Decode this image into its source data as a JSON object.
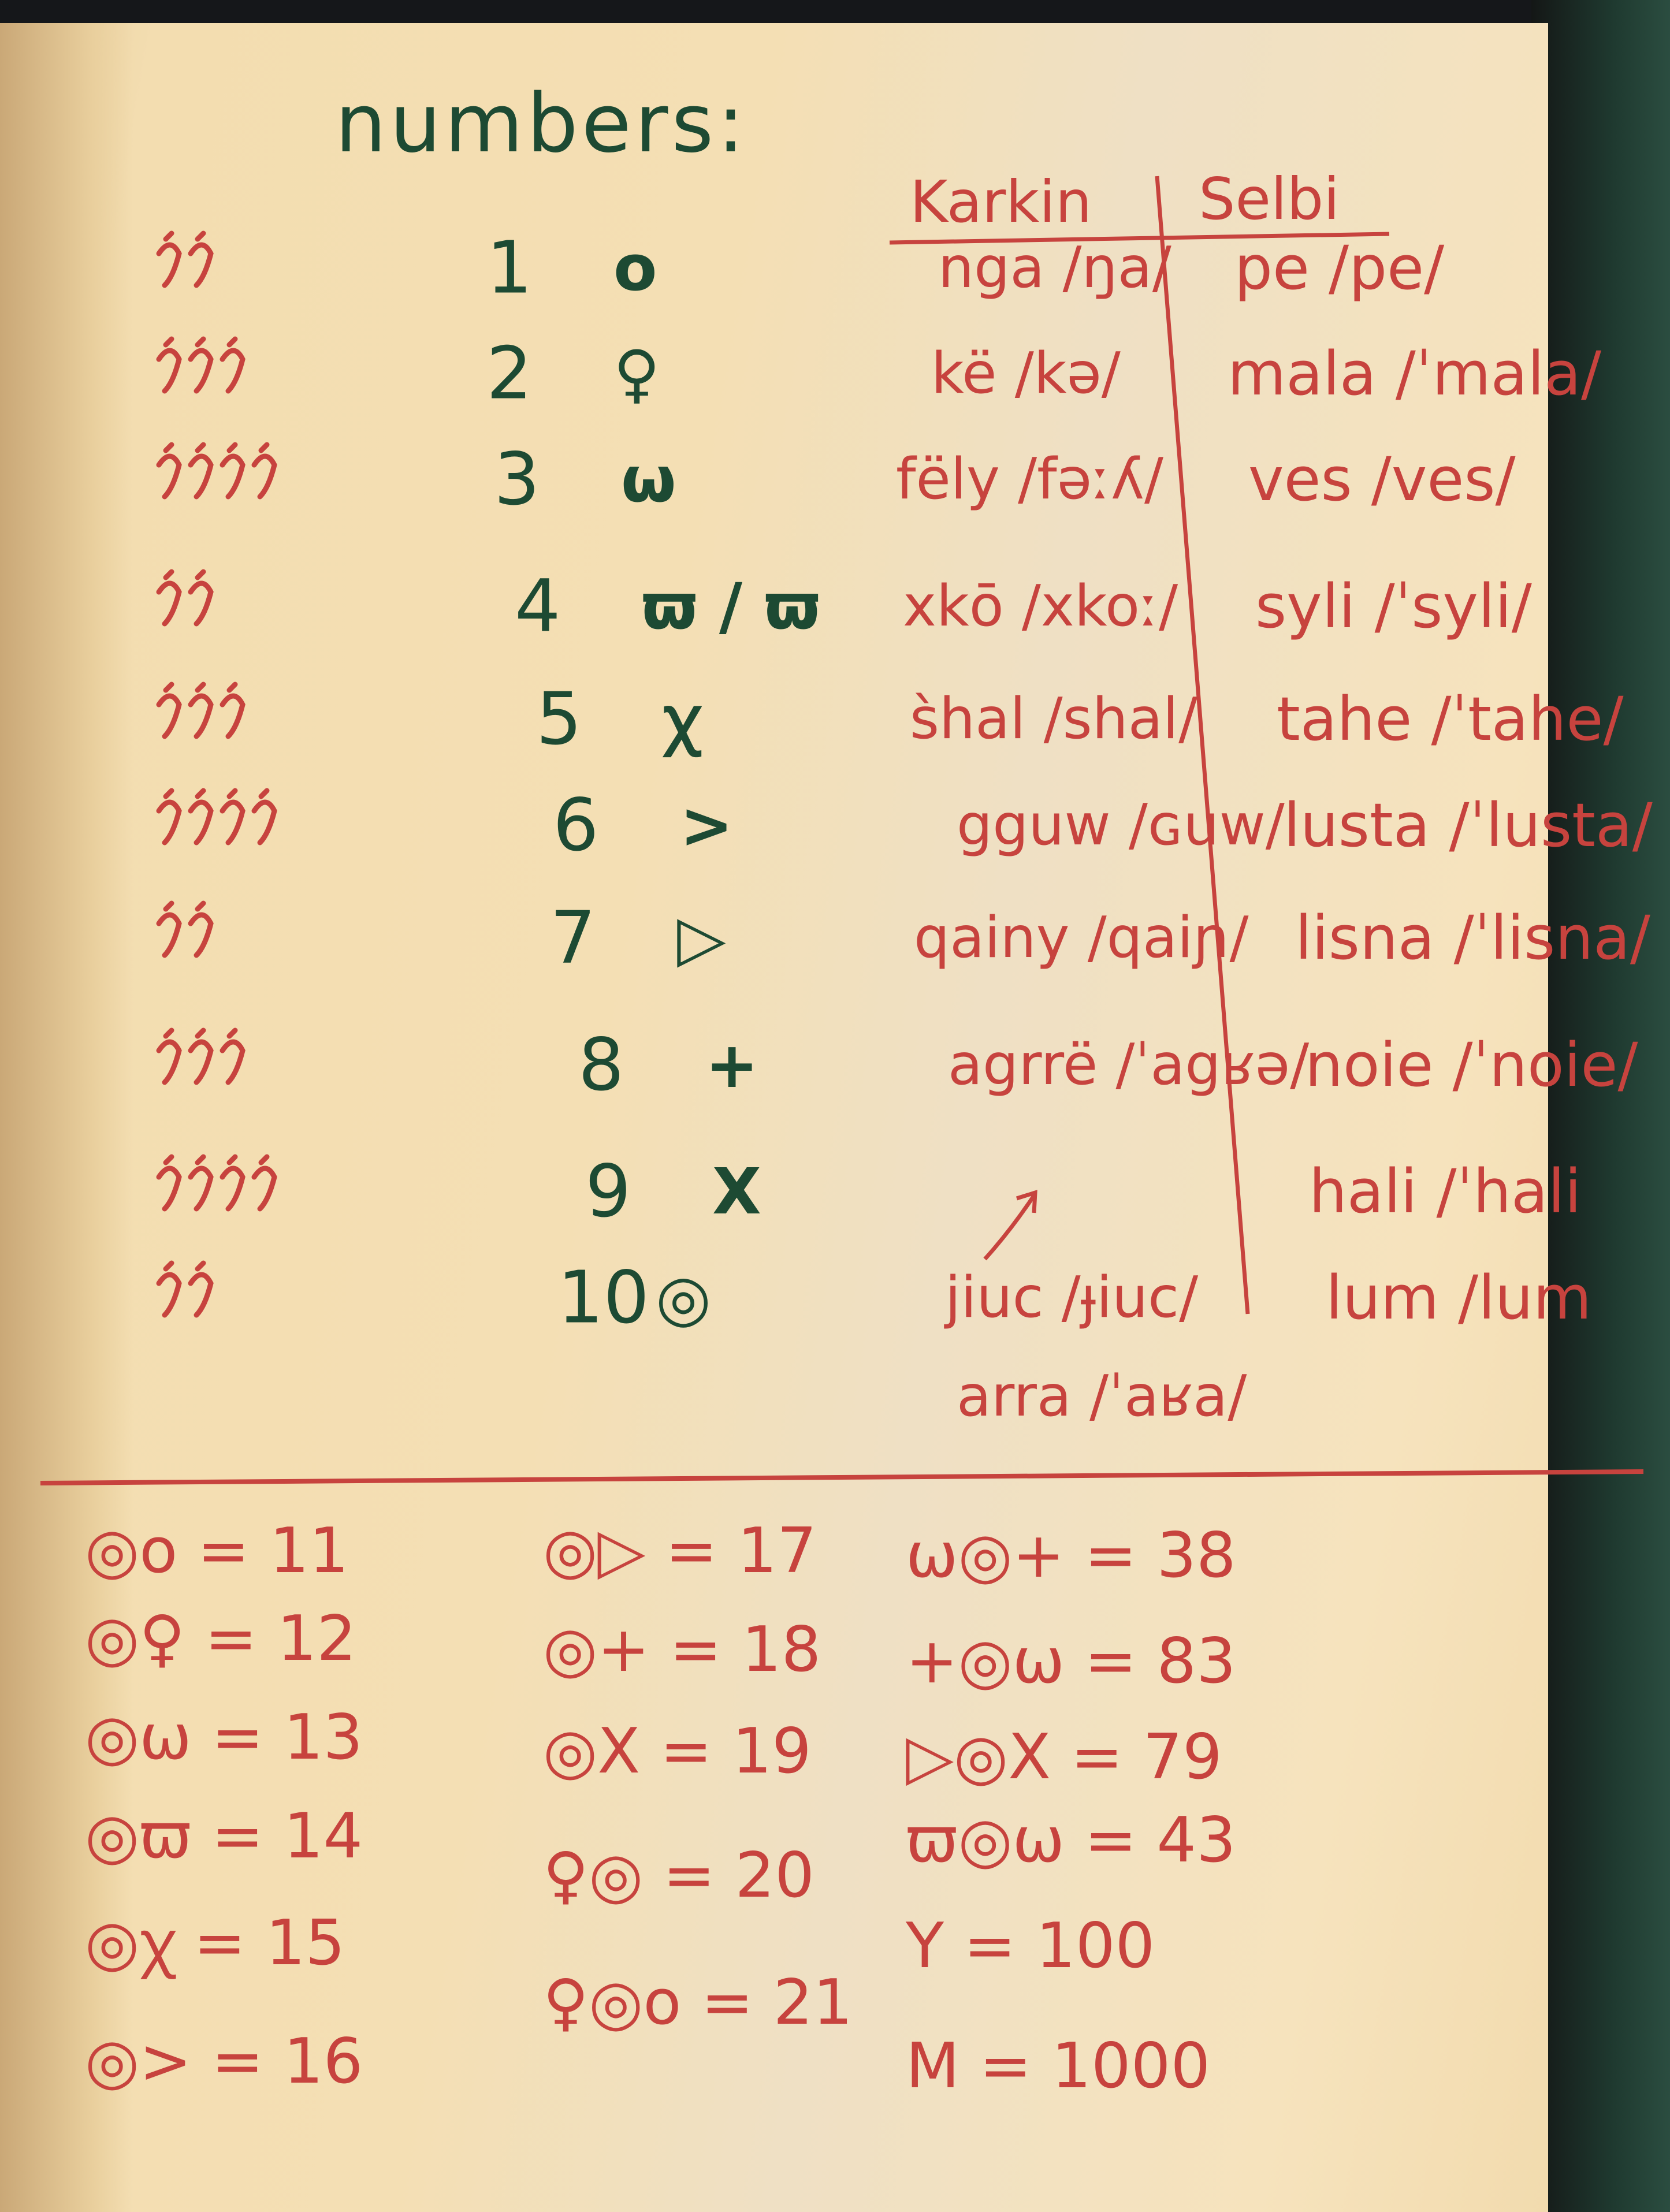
{
  "title": "numbers:",
  "colors": {
    "ink_red": "#c7433e",
    "ink_green": "#1d4a33",
    "paper": "#f3ddb0"
  },
  "table": {
    "headers": {
      "karkin": "Karkin",
      "selbi": "Selbi"
    },
    "rows": [
      {
        "numeral": "1",
        "symbol": "o",
        "karkin": "nga /ŋa/",
        "selbi": "pe /pe/"
      },
      {
        "numeral": "2",
        "symbol": "♀",
        "karkin": "kë /kə/",
        "selbi": "mala /ˈmala/"
      },
      {
        "numeral": "3",
        "symbol": "ω",
        "karkin": "fëly /fəːʎ/",
        "selbi": "ves /ves/"
      },
      {
        "numeral": "4",
        "symbol": "ϖ / ϖ",
        "karkin": "xkō /xkoː/",
        "selbi": "syli /ˈsyli/"
      },
      {
        "numeral": "5",
        "symbol": "ꭓ",
        "karkin": "s̀hal /shal/",
        "selbi": "tahe /ˈtahe/"
      },
      {
        "numeral": "6",
        "symbol": ">",
        "karkin": "gguw /ɢuw/",
        "selbi": "lusta /ˈlusta/"
      },
      {
        "numeral": "7",
        "symbol": "▷",
        "karkin": "qainy /qaiɲ/",
        "selbi": "lisna /ˈlisna/"
      },
      {
        "numeral": "8",
        "symbol": "+",
        "karkin": "agrrë /ˈagʁə/",
        "selbi": "noie /ˈnoie/"
      },
      {
        "numeral": "9",
        "symbol": "X",
        "karkin": "",
        "selbi": "hali /ˈhali"
      },
      {
        "numeral": "10",
        "symbol": "◎",
        "karkin": "jiuc /ɟiuc/",
        "selbi": "lum /lum"
      }
    ],
    "karkin_extra": "arra /ˈaʁa/"
  },
  "equations": [
    [
      "◎o = 11",
      "◎♀ = 12",
      "◎ω = 13",
      "◎ϖ = 14",
      "◎ꭓ = 15",
      "◎> = 16"
    ],
    [
      "◎▷ = 17",
      "◎+ = 18",
      "◎X = 19",
      "♀◎ = 20",
      "♀◎o = 21"
    ],
    [
      "ω◎+ = 38",
      "+◎ω = 83",
      "▷◎X = 79",
      "ϖ◎ω = 43",
      "Y = 100",
      "M = 1000"
    ]
  ]
}
